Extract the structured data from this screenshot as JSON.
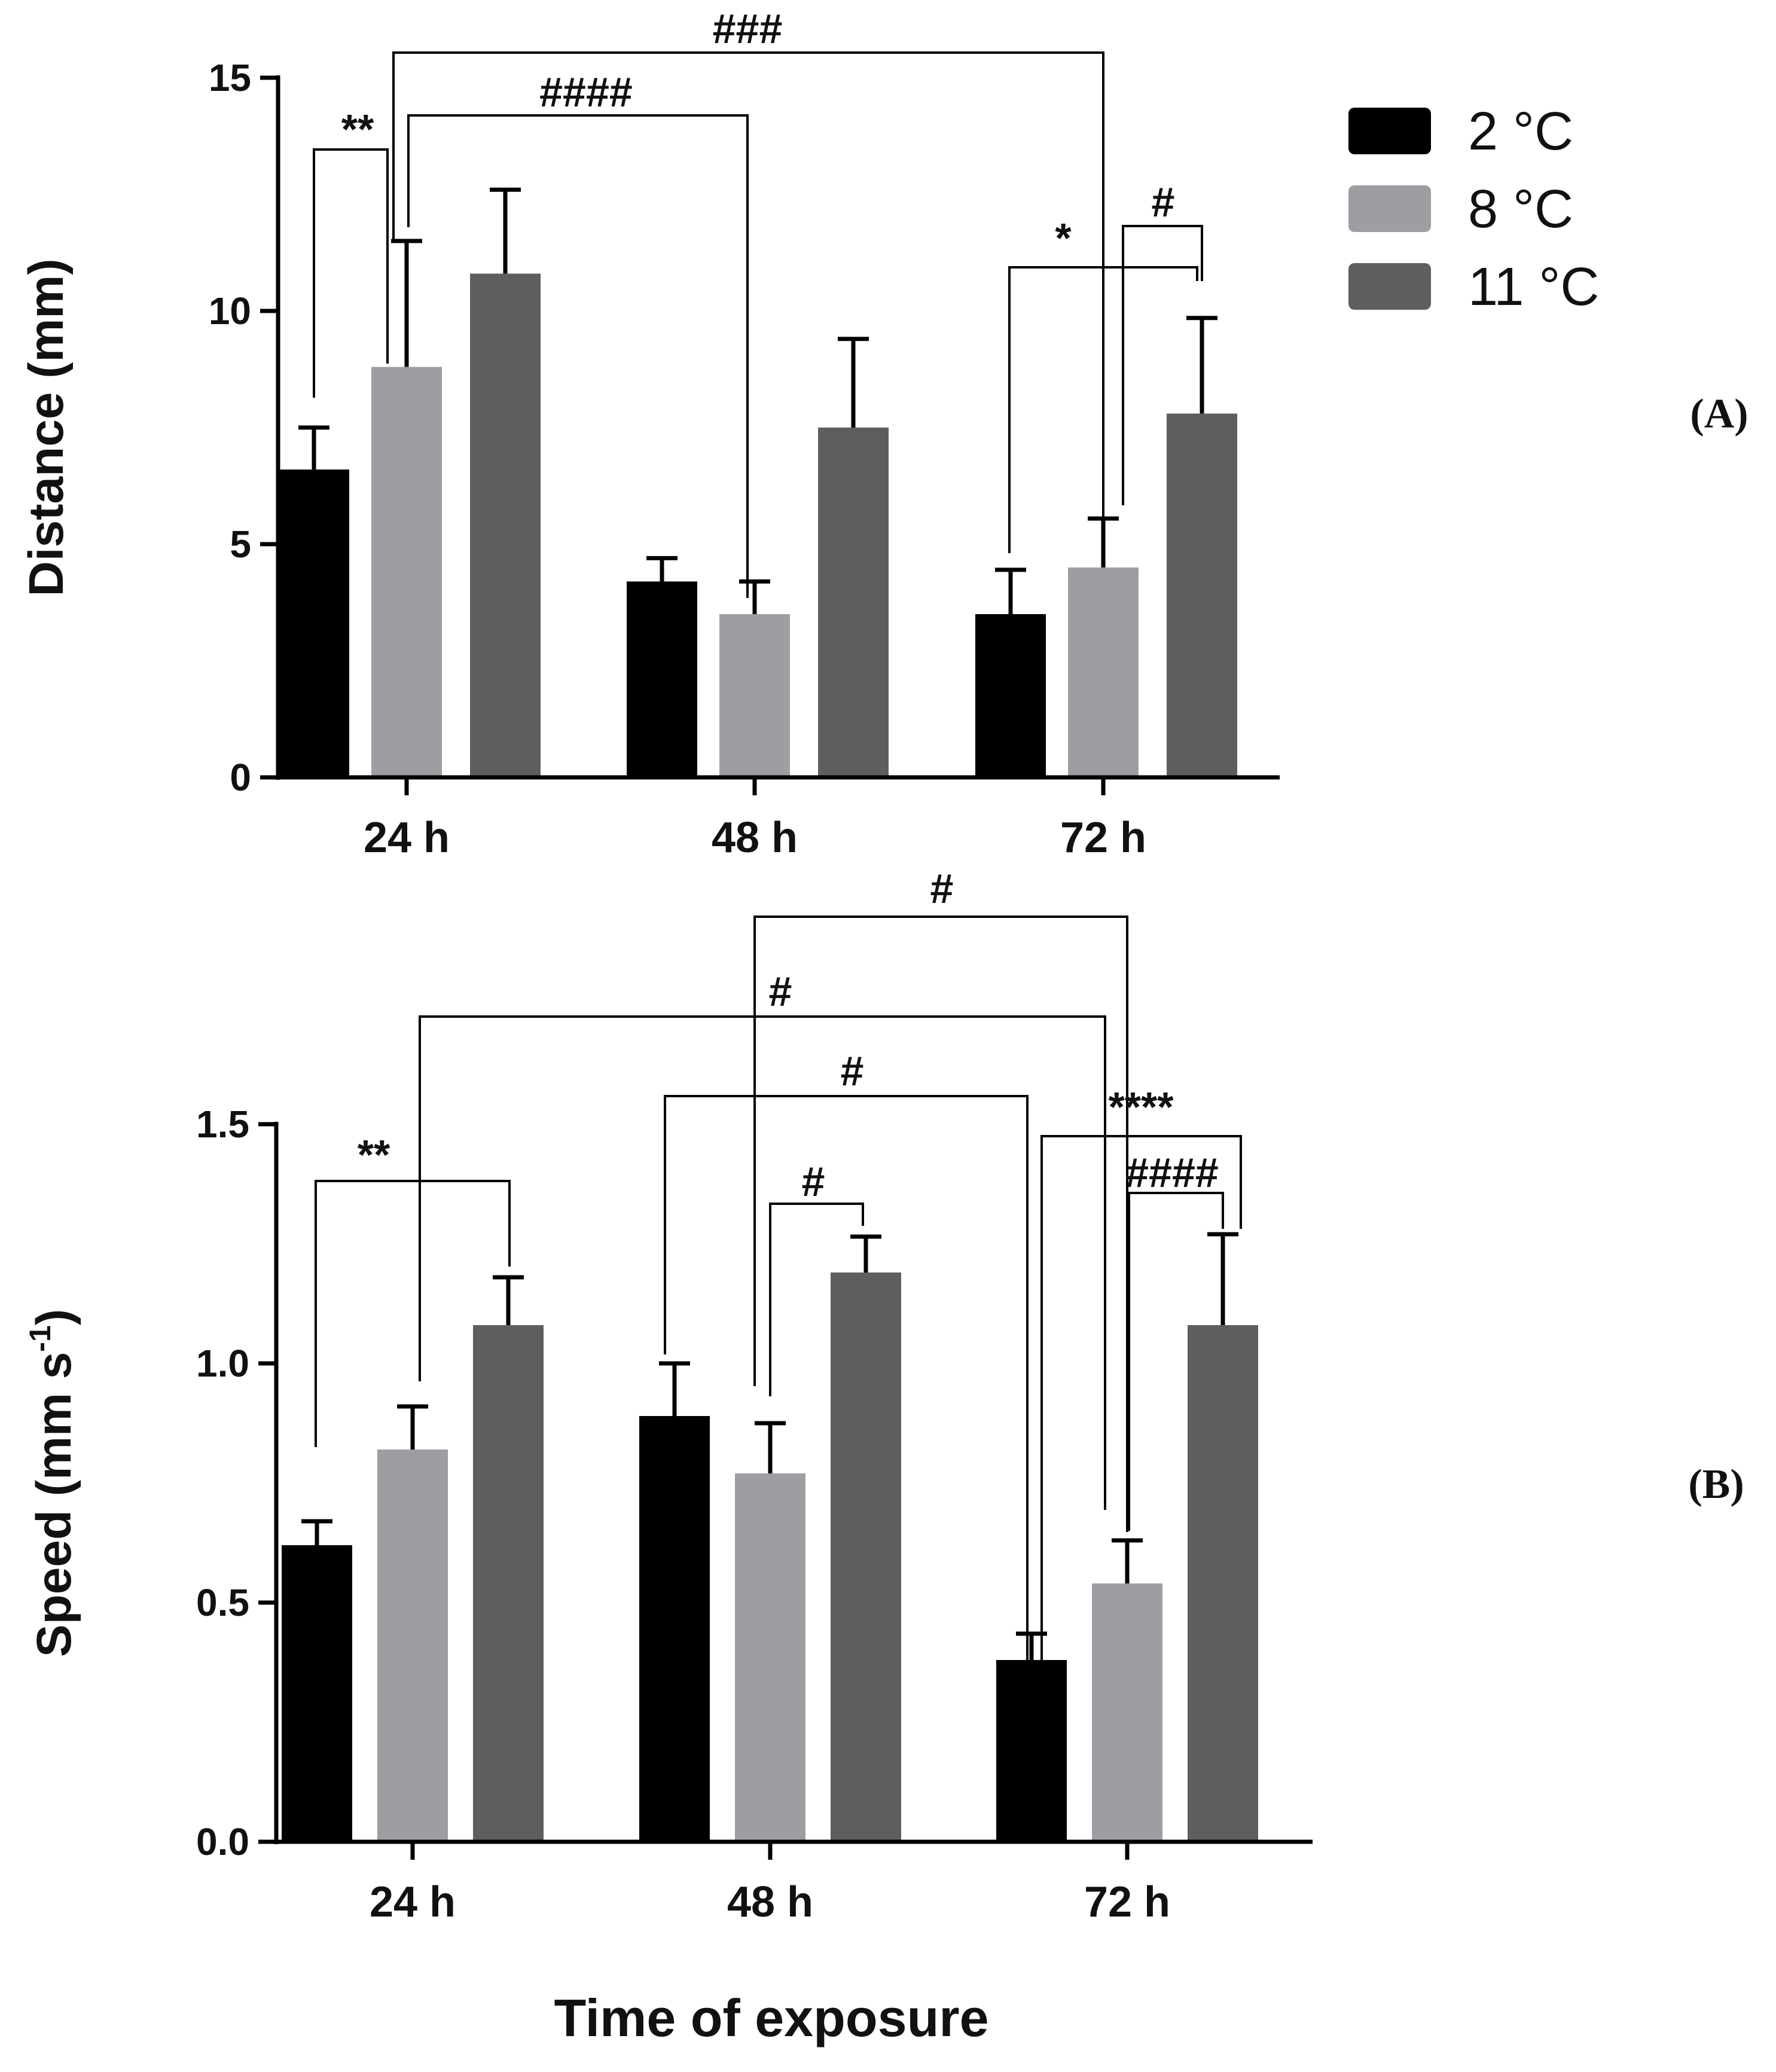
{
  "chart_data": [
    {
      "type": "bar",
      "panel": "(A)",
      "categories": [
        "24 h",
        "48 h",
        "72 h"
      ],
      "series": [
        {
          "name": "2 °C",
          "color": "#000000",
          "values": [
            6.6,
            4.2,
            3.5
          ],
          "errors": [
            0.9,
            0.5,
            0.95
          ]
        },
        {
          "name": "8 °C",
          "color": "#9e9ea2",
          "values": [
            8.8,
            3.5,
            4.5
          ],
          "errors": [
            2.7,
            0.7,
            1.05
          ]
        },
        {
          "name": "11 °C",
          "color": "#5e5e5e",
          "values": [
            10.8,
            7.5,
            7.8
          ],
          "errors": [
            1.8,
            1.9,
            2.05
          ]
        }
      ],
      "ylabel": "Distance (mm)",
      "ylim": [
        0,
        15
      ],
      "yticks": [
        "0",
        "5",
        "10",
        "15"
      ],
      "annotations": [
        {
          "label": "**",
          "from": [
            0,
            0
          ],
          "to": [
            0,
            1
          ]
        },
        {
          "label": "###",
          "from": [
            0,
            1
          ],
          "to": [
            2,
            1
          ]
        },
        {
          "label": "####",
          "from": [
            0,
            1
          ],
          "to": [
            1,
            1
          ]
        },
        {
          "label": "*",
          "from": [
            2,
            0
          ],
          "to": [
            2,
            2
          ]
        },
        {
          "label": "#",
          "from": [
            2,
            1
          ],
          "to": [
            2,
            2
          ]
        }
      ]
    },
    {
      "type": "bar",
      "panel": "(B)",
      "categories": [
        "24 h",
        "48 h",
        "72 h"
      ],
      "series": [
        {
          "name": "2 °C",
          "color": "#000000",
          "values": [
            0.62,
            0.89,
            0.38
          ],
          "errors": [
            0.05,
            0.11,
            0.055
          ]
        },
        {
          "name": "8 °C",
          "color": "#9e9ea2",
          "values": [
            0.82,
            0.77,
            0.54
          ],
          "errors": [
            0.09,
            0.105,
            0.09
          ]
        },
        {
          "name": "11 °C",
          "color": "#5e5e5e",
          "values": [
            1.08,
            1.19,
            1.08
          ],
          "errors": [
            0.1,
            0.075,
            0.19
          ]
        }
      ],
      "ylabel": "Speed (mm s",
      "ylabel_superscript": "-1",
      "ylabel_suffix": ")",
      "ylim": [
        0,
        1.5
      ],
      "yticks": [
        "0.0",
        "0.5",
        "1.0",
        "1.5"
      ],
      "xlabel": "Time of exposure",
      "annotations": [
        {
          "label": "#",
          "from": [
            1,
            1
          ],
          "to": [
            2,
            1
          ]
        },
        {
          "label": "#",
          "from": [
            0,
            1
          ],
          "to": [
            2,
            1
          ]
        },
        {
          "label": "#",
          "from": [
            1,
            0
          ],
          "to": [
            2,
            0
          ]
        },
        {
          "label": "****",
          "from": [
            2,
            0
          ],
          "to": [
            2,
            2
          ]
        },
        {
          "label": "**",
          "from": [
            0,
            0
          ],
          "to": [
            0,
            2
          ]
        },
        {
          "label": "#",
          "from": [
            1,
            1
          ],
          "to": [
            1,
            2
          ]
        },
        {
          "label": "####",
          "from": [
            2,
            1
          ],
          "to": [
            2,
            2
          ]
        }
      ]
    }
  ]
}
